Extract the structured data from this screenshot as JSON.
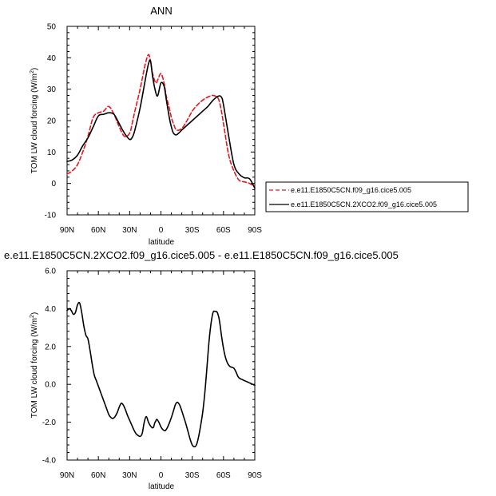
{
  "chart_data": [
    {
      "type": "line",
      "title": "ANN",
      "xlabel": "latitude",
      "ylabel": "TOM LW cloud forcing (W/m",
      "ylabel_sup": "2",
      "ylabel_end": ")",
      "xlim": [
        90,
        -90
      ],
      "ylim": [
        -10,
        50
      ],
      "x_ticks": [
        90,
        60,
        30,
        0,
        -30,
        -60,
        -90
      ],
      "x_tick_labels": [
        "90N",
        "60N",
        "30N",
        "0",
        "30S",
        "60S",
        "90S"
      ],
      "y_ticks": [
        -10,
        0,
        10,
        20,
        30,
        40,
        50
      ],
      "y_tick_labels": [
        "-10",
        "0",
        "10",
        "20",
        "30",
        "40",
        "50"
      ],
      "legend_position": "right",
      "series": [
        {
          "name": "e.e11.E1850C5CN.f09_g16.cice5.005",
          "color": "#e8151b",
          "dash": "dashed",
          "x": [
            90,
            85,
            80,
            75,
            70,
            65,
            60,
            55,
            50,
            45,
            40,
            35,
            30,
            27,
            25,
            20,
            15,
            12,
            10,
            8,
            5,
            3,
            0,
            -3,
            -5,
            -8,
            -10,
            -12,
            -15,
            -20,
            -25,
            -30,
            -35,
            -40,
            -45,
            -50,
            -55,
            -58,
            -60,
            -65,
            -70,
            -75,
            -80,
            -85,
            -90
          ],
          "y": [
            3,
            4,
            6,
            10,
            15,
            21,
            22.5,
            23,
            24.5,
            22,
            18,
            15,
            16,
            20,
            23,
            30,
            38,
            41,
            39,
            35,
            32,
            33,
            35,
            32,
            28,
            24,
            21,
            19,
            17,
            17.5,
            20,
            23,
            25,
            26.5,
            27.5,
            28,
            27,
            23,
            19,
            9,
            4,
            1,
            0.5,
            0,
            -1
          ]
        },
        {
          "name": "e.e11.E1850C5CN.2XCO2.f09_g16.cice5.005",
          "color": "#000000",
          "dash": "solid",
          "x": [
            90,
            85,
            80,
            75,
            70,
            65,
            60,
            55,
            50,
            45,
            40,
            35,
            30,
            27,
            25,
            20,
            15,
            12,
            10,
            8,
            5,
            3,
            0,
            -3,
            -5,
            -8,
            -10,
            -12,
            -15,
            -20,
            -25,
            -30,
            -35,
            -40,
            -45,
            -50,
            -55,
            -58,
            -60,
            -65,
            -70,
            -75,
            -80,
            -85,
            -90
          ],
          "y": [
            7,
            7.5,
            9,
            12,
            14.5,
            18,
            21.5,
            22,
            22.5,
            22,
            19,
            16,
            14,
            15,
            17,
            24,
            33,
            38,
            39,
            34,
            29,
            28,
            32,
            31,
            27,
            21,
            18,
            16,
            15.5,
            17,
            18.5,
            20,
            21.5,
            23,
            24.5,
            26.5,
            27.8,
            27.5,
            25,
            15,
            6,
            3,
            1.8,
            1.5,
            -1.5
          ]
        }
      ]
    },
    {
      "type": "line",
      "title": "e.e11.E1850C5CN.2XCO2.f09_g16.cice5.005 - e.e11.E1850C5CN.f09_g16.cice5.005",
      "xlabel": "latitude",
      "ylabel": "TOM LW cloud forcing (W/m",
      "ylabel_sup": "2",
      "ylabel_end": ")",
      "xlim": [
        90,
        -90
      ],
      "ylim": [
        -4,
        6
      ],
      "x_ticks": [
        90,
        60,
        30,
        0,
        -30,
        -60,
        -90
      ],
      "x_tick_labels": [
        "90N",
        "60N",
        "30N",
        "0",
        "30S",
        "60S",
        "90S"
      ],
      "y_ticks": [
        -4,
        -2,
        0,
        2,
        4,
        6
      ],
      "y_tick_labels": [
        "-4.0",
        "-2.0",
        "0.0",
        "2.0",
        "4.0",
        "6.0"
      ],
      "series": [
        {
          "color": "#000000",
          "dash": "solid",
          "x": [
            90,
            88,
            86,
            84,
            82,
            80,
            78,
            76,
            74,
            72,
            70,
            68,
            66,
            64,
            62,
            60,
            58,
            56,
            54,
            52,
            50,
            48,
            46,
            44,
            42,
            40,
            38,
            36,
            34,
            32,
            30,
            28,
            26,
            24,
            22,
            20,
            18,
            16,
            14,
            12,
            10,
            8,
            7,
            6,
            5,
            4,
            2,
            0,
            -2,
            -4,
            -6,
            -8,
            -10,
            -12,
            -14,
            -16,
            -18,
            -20,
            -22,
            -24,
            -26,
            -28,
            -30,
            -32,
            -34,
            -36,
            -38,
            -40,
            -42,
            -44,
            -46,
            -48,
            -50,
            -52,
            -54,
            -56,
            -58,
            -60,
            -62,
            -64,
            -66,
            -68,
            -70,
            -72,
            -74,
            -76,
            -78,
            -80,
            -82,
            -84,
            -86,
            -88,
            -90
          ],
          "y": [
            3.9,
            4.0,
            3.9,
            3.7,
            3.8,
            4.2,
            4.3,
            3.8,
            3.1,
            2.6,
            2.4,
            1.8,
            1.1,
            0.5,
            0.2,
            -0.1,
            -0.4,
            -0.7,
            -1.0,
            -1.3,
            -1.6,
            -1.75,
            -1.8,
            -1.7,
            -1.5,
            -1.2,
            -1.0,
            -1.1,
            -1.35,
            -1.65,
            -1.9,
            -2.15,
            -2.4,
            -2.6,
            -2.7,
            -2.75,
            -2.6,
            -2.0,
            -1.7,
            -2.0,
            -2.2,
            -2.3,
            -2.25,
            -2.05,
            -1.95,
            -1.85,
            -2.0,
            -2.25,
            -2.4,
            -2.45,
            -2.3,
            -2.05,
            -1.75,
            -1.4,
            -1.05,
            -0.95,
            -1.1,
            -1.4,
            -1.75,
            -2.1,
            -2.5,
            -2.9,
            -3.2,
            -3.3,
            -3.2,
            -2.8,
            -2.2,
            -1.5,
            -0.5,
            0.8,
            2.2,
            3.2,
            3.8,
            3.85,
            3.8,
            3.4,
            2.6,
            1.9,
            1.4,
            1.1,
            0.95,
            0.9,
            0.85,
            0.65,
            0.4,
            0.3,
            0.25,
            0.2,
            0.15,
            0.1,
            0.05,
            0.0,
            -0.05
          ]
        }
      ]
    }
  ]
}
